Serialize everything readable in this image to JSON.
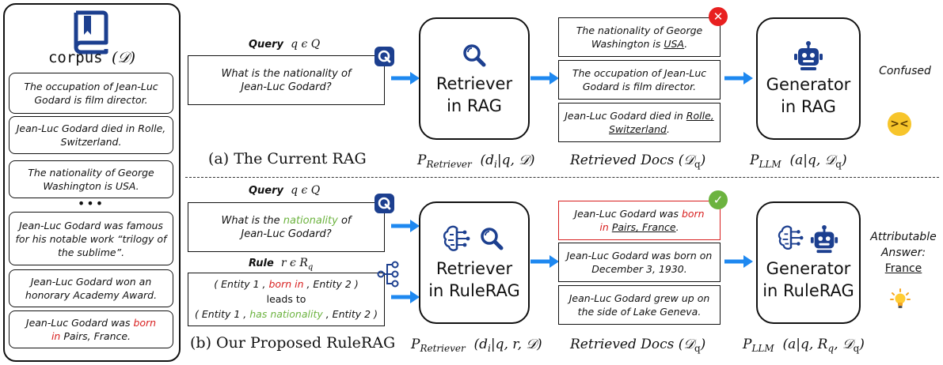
{
  "corpus": {
    "title": "corpus",
    "symbol": "(𝒟)",
    "docs": [
      "The occupation of Jean-Luc Godard is film director.",
      "Jean-Luc Godard died in Rolle, Switzerland.",
      "The nationality of George Washington is USA.",
      "Jean-Luc Godard was famous for his notable work “trilogy of the sublime”.",
      "Jean-Luc Godard won an honorary Academy Award."
    ],
    "ellipsis": "•••",
    "last_doc": {
      "pre": "Jean-Luc Godard was ",
      "hl1": "born",
      "hl2": "in",
      "post": " Pairs, France."
    }
  },
  "top": {
    "query_label": "Query",
    "query_symbol": "q ϵ Q",
    "query_text": "What is the nationality of Jean-Luc Godard?",
    "retriever_label": "Retriever in RAG",
    "docs": [
      {
        "pre": "The nationality of George Washington is ",
        "u": "USA",
        "post": "."
      },
      {
        "pre": "The occupation of Jean-Luc Godard is film director.",
        "u": "",
        "post": ""
      },
      {
        "pre": "Jean-Luc Godard died in ",
        "u": "Rolle, Switzerland",
        "post": "."
      }
    ],
    "generator_label": "Generator in RAG",
    "result": "Confused",
    "caption": "(a) The Current RAG",
    "f_retriever": {
      "p": "P",
      "sub": "Retriever",
      "args": "(d",
      "args_sub": "i",
      "args_rest": "|q, 𝒟)"
    },
    "f_docs": {
      "main": "Retrieved Docs (𝒟",
      "sub": "q",
      "end": ")"
    },
    "f_llm": {
      "p": "P",
      "sub": "LLM",
      "args": "(a|q, 𝒟",
      "args_sub": "q",
      "end": ")"
    }
  },
  "bottom": {
    "query_label": "Query",
    "query_symbol": "q ϵ Q",
    "query_pre": "What is the ",
    "query_hl": "nationality",
    "query_post": " of Jean-Luc Godard?",
    "rule_label": "Rule",
    "rule_symbol": "r ϵ R",
    "rule_symbol_sub": "q",
    "rule_line1_pre": "( Entity 1 , ",
    "rule_line1_hl": "born in",
    "rule_line1_post": " , Entity 2 )",
    "rule_line2": "leads  to",
    "rule_line3_pre": "( Entity 1 , ",
    "rule_line3_hl": "has nationality",
    "rule_line3_post": " , Entity 2 )",
    "retriever_label": "Retriever in RuleRAG",
    "docs": [
      {
        "pre": "Jean-Luc Godard was ",
        "hl": "born",
        "hl2": "in",
        "u": "Pairs, France",
        "post": "."
      },
      {
        "text": "Jean-Luc Godard was born on December 3, 1930."
      },
      {
        "text": "Jean-Luc Godard grew up on the side of Lake Geneva."
      }
    ],
    "generator_label": "Generator in RuleRAG",
    "result_line1": "Attributable",
    "result_line2": "Answer:",
    "result_answer": "France",
    "caption": "(b) Our Proposed RuleRAG",
    "f_retriever": {
      "p": "P",
      "sub": "Retriever",
      "args": "(d",
      "args_sub": "i",
      "args_rest": "|q, r, 𝒟)"
    },
    "f_docs": {
      "main": "Retrieved Docs (𝒟",
      "sub": "q",
      "end": ")"
    },
    "f_llm": {
      "p": "P",
      "sub": "LLM",
      "args": "(a|q, R",
      "args_sub": "q",
      "args_rest": ", 𝒟",
      "args_sub2": "q",
      "end": ")"
    }
  },
  "colors": {
    "accent_blue": "#1e88f0",
    "icon_navy": "#1c3f8f",
    "red": "#d81e1e",
    "green": "#6cb33f"
  }
}
